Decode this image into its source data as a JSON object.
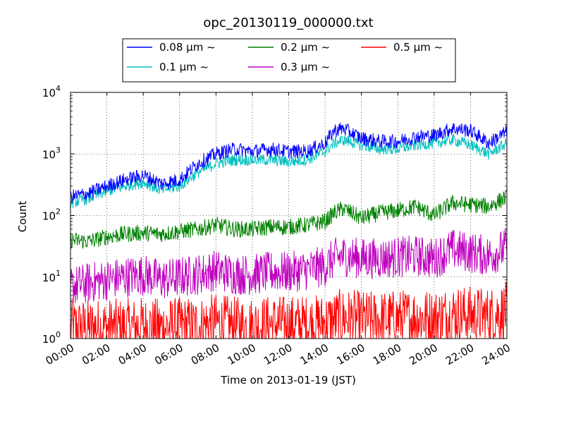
{
  "chart_data": {
    "type": "line",
    "title": "opc_20130119_000000.txt",
    "xlabel": "Time on 2013-01-19 (JST)",
    "ylabel": "Count",
    "xlim": [
      "00:00",
      "24:00"
    ],
    "ylim": [
      1,
      10000
    ],
    "yscale": "log",
    "grid": true,
    "legend_position": "top-center",
    "x_ticks": [
      "00:00",
      "02:00",
      "04:00",
      "06:00",
      "08:00",
      "10:00",
      "12:00",
      "14:00",
      "16:00",
      "18:00",
      "20:00",
      "22:00",
      "24:00"
    ],
    "y_ticks": [
      {
        "value": 1,
        "base": "10",
        "exp": "0"
      },
      {
        "value": 10,
        "base": "10",
        "exp": "1"
      },
      {
        "value": 100,
        "base": "10",
        "exp": "2"
      },
      {
        "value": 1000,
        "base": "10",
        "exp": "3"
      },
      {
        "value": 10000,
        "base": "10",
        "exp": "4"
      }
    ],
    "x_hours": [
      0,
      1,
      2,
      3,
      4,
      5,
      6,
      7,
      8,
      9,
      10,
      11,
      12,
      13,
      14,
      14.5,
      15,
      16,
      17,
      18,
      19,
      20,
      21,
      22,
      23,
      24
    ],
    "series": [
      {
        "name": "0.08 μm ~",
        "color": "#0000ff",
        "noise": 0.12,
        "values": [
          200,
          230,
          300,
          380,
          450,
          330,
          380,
          700,
          1000,
          1200,
          1100,
          1200,
          1100,
          1100,
          1500,
          2400,
          2600,
          1800,
          1600,
          1600,
          1900,
          2000,
          2600,
          2400,
          1500,
          2300
        ]
      },
      {
        "name": "0.1 μm ~",
        "color": "#00bfbf",
        "noise": 0.1,
        "values": [
          160,
          190,
          250,
          300,
          350,
          260,
          300,
          500,
          700,
          800,
          800,
          800,
          750,
          800,
          1100,
          1500,
          1700,
          1400,
          1200,
          1200,
          1400,
          1500,
          1700,
          1400,
          1000,
          1500
        ]
      },
      {
        "name": "0.2 μm ~",
        "color": "#008000",
        "noise": 0.14,
        "values": [
          40,
          38,
          45,
          50,
          52,
          50,
          55,
          60,
          70,
          60,
          60,
          65,
          65,
          70,
          80,
          110,
          130,
          90,
          110,
          120,
          140,
          100,
          160,
          150,
          140,
          200
        ]
      },
      {
        "name": "0.3 μm ~",
        "color": "#bf00bf",
        "noise": 0.35,
        "values": [
          7,
          8,
          9,
          10,
          11,
          9,
          10,
          11,
          13,
          11,
          11,
          12,
          12,
          13,
          15,
          20,
          22,
          20,
          20,
          21,
          22,
          20,
          28,
          25,
          22,
          30
        ]
      },
      {
        "name": "0.5 μm ~",
        "color": "#ff0000",
        "noise": 0.5,
        "values": [
          1.5,
          1.5,
          1.5,
          1.5,
          1.6,
          1.5,
          1.6,
          1.6,
          1.8,
          1.6,
          1.6,
          1.7,
          1.7,
          1.7,
          1.8,
          2,
          2.2,
          2,
          2,
          2.1,
          2.2,
          2.1,
          2.5,
          2.4,
          2.3,
          2.8
        ]
      }
    ]
  }
}
